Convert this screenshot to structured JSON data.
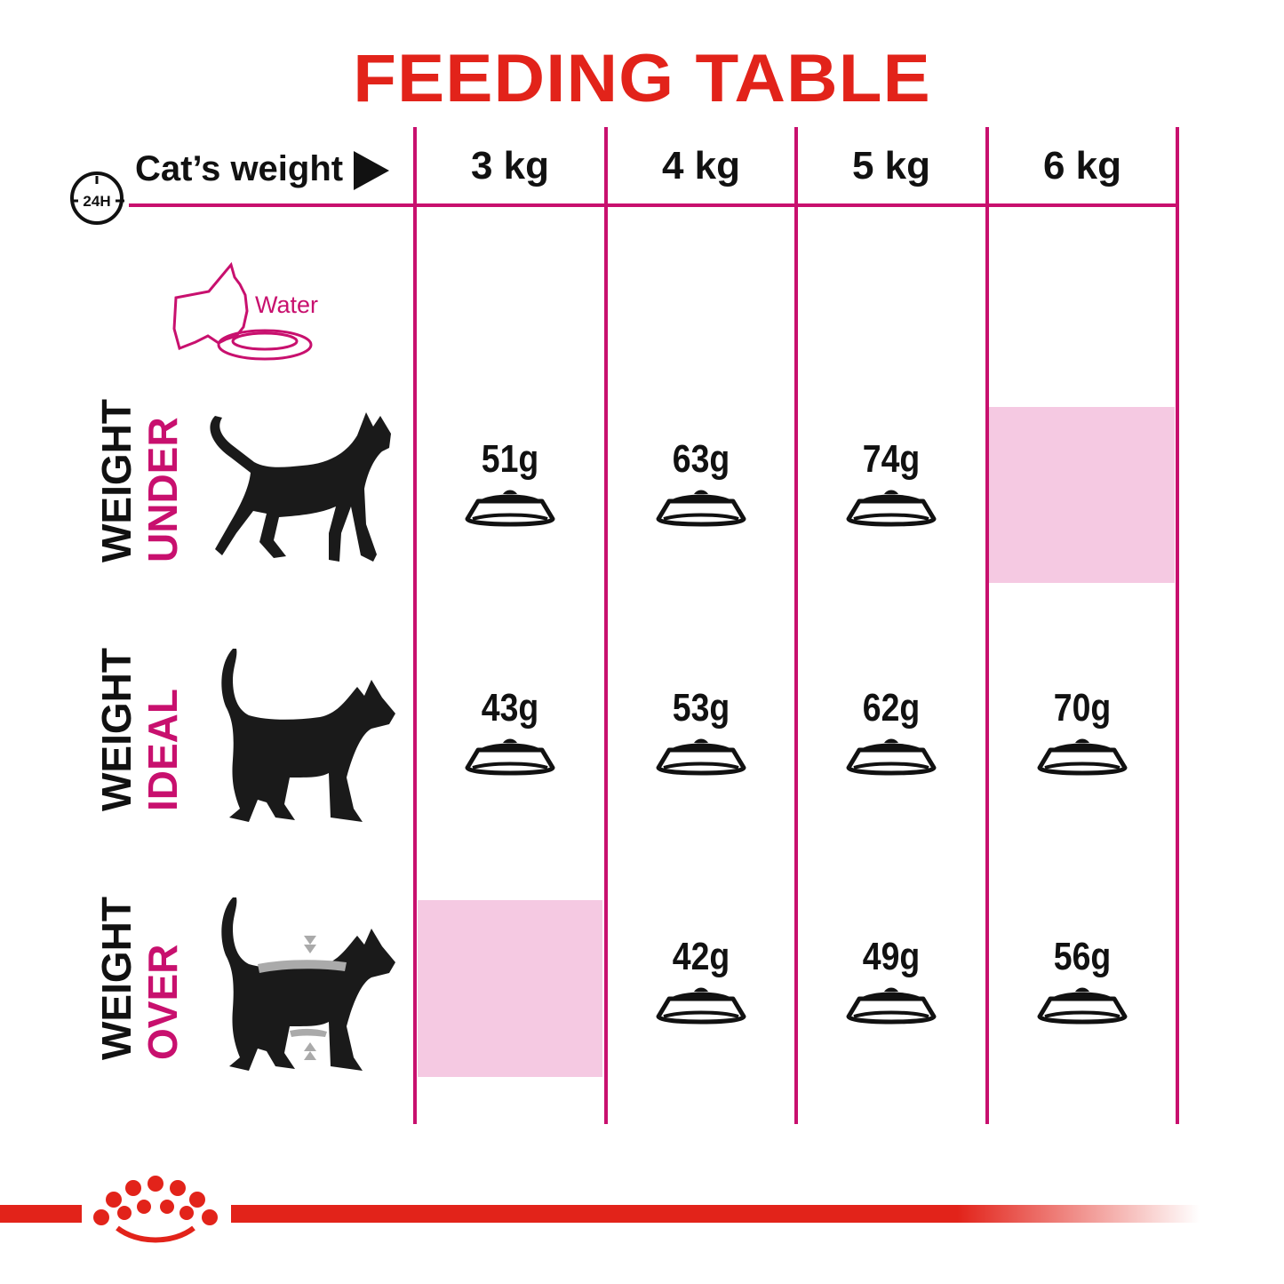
{
  "title": "FEEDING TABLE",
  "header": {
    "clock_label": "24H",
    "cats_weight_label": "Cat’s weight",
    "columns": [
      "3 kg",
      "4 kg",
      "5 kg",
      "6 kg"
    ]
  },
  "water_label": "Water",
  "rows": [
    {
      "label_top": "UNDER",
      "label_bottom": "WEIGHT",
      "values": [
        "51g",
        "63g",
        "74g",
        null
      ]
    },
    {
      "label_top": "IDEAL",
      "label_bottom": "WEIGHT",
      "values": [
        "43g",
        "53g",
        "62g",
        "70g"
      ]
    },
    {
      "label_top": "OVER",
      "label_bottom": "WEIGHT",
      "values": [
        null,
        "42g",
        "49g",
        "56g"
      ]
    }
  ],
  "colors": {
    "title": "#e2231a",
    "grid": "#c8106e",
    "label_accent": "#c8106e",
    "not_recommended": "#f5c9e2",
    "brand": "#e2231a"
  },
  "icons": [
    "clock-24h-icon",
    "play-arrow-icon",
    "cat-drinking-water-icon",
    "food-bowl-icon",
    "cat-silhouette-icon",
    "royal-canin-crown-logo"
  ]
}
